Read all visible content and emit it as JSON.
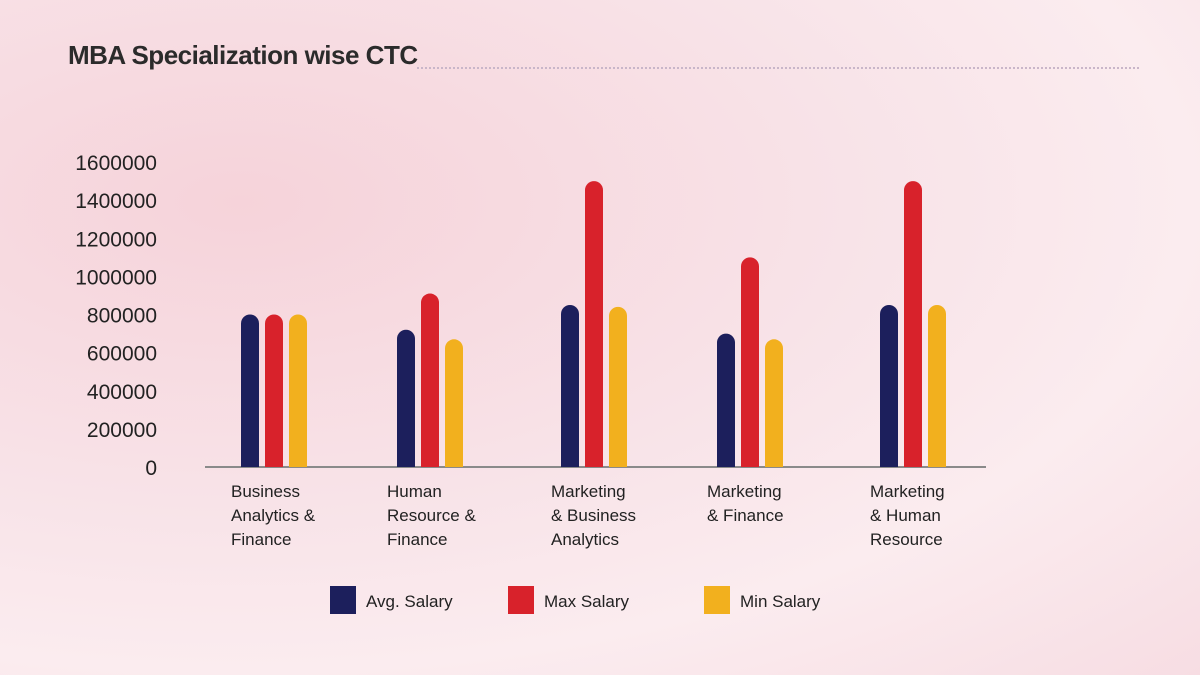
{
  "chart_data": {
    "type": "bar",
    "title": "MBA Specialization wise CTC",
    "xlabel": "",
    "ylabel": "",
    "ylim": [
      0,
      1600000
    ],
    "yticks": [
      0,
      200000,
      400000,
      600000,
      800000,
      1000000,
      1200000,
      1400000,
      1600000
    ],
    "categories": [
      [
        "Business",
        "Analytics &",
        "Finance"
      ],
      [
        "Human",
        "Resource &",
        "Finance"
      ],
      [
        "Marketing",
        "& Business",
        "Analytics"
      ],
      [
        "Marketing",
        "& Finance"
      ],
      [
        "Marketing",
        "& Human",
        "Resource"
      ]
    ],
    "series": [
      {
        "name": "Avg. Salary",
        "color": "#1c1f5c",
        "values": [
          800000,
          720000,
          850000,
          700000,
          850000
        ]
      },
      {
        "name": "Max Salary",
        "color": "#d8222b",
        "values": [
          800000,
          910000,
          1500000,
          1100000,
          1500000
        ]
      },
      {
        "name": "Min Salary",
        "color": "#f2b01e",
        "values": [
          800000,
          670000,
          840000,
          670000,
          850000
        ]
      }
    ],
    "legend_position": "bottom"
  }
}
